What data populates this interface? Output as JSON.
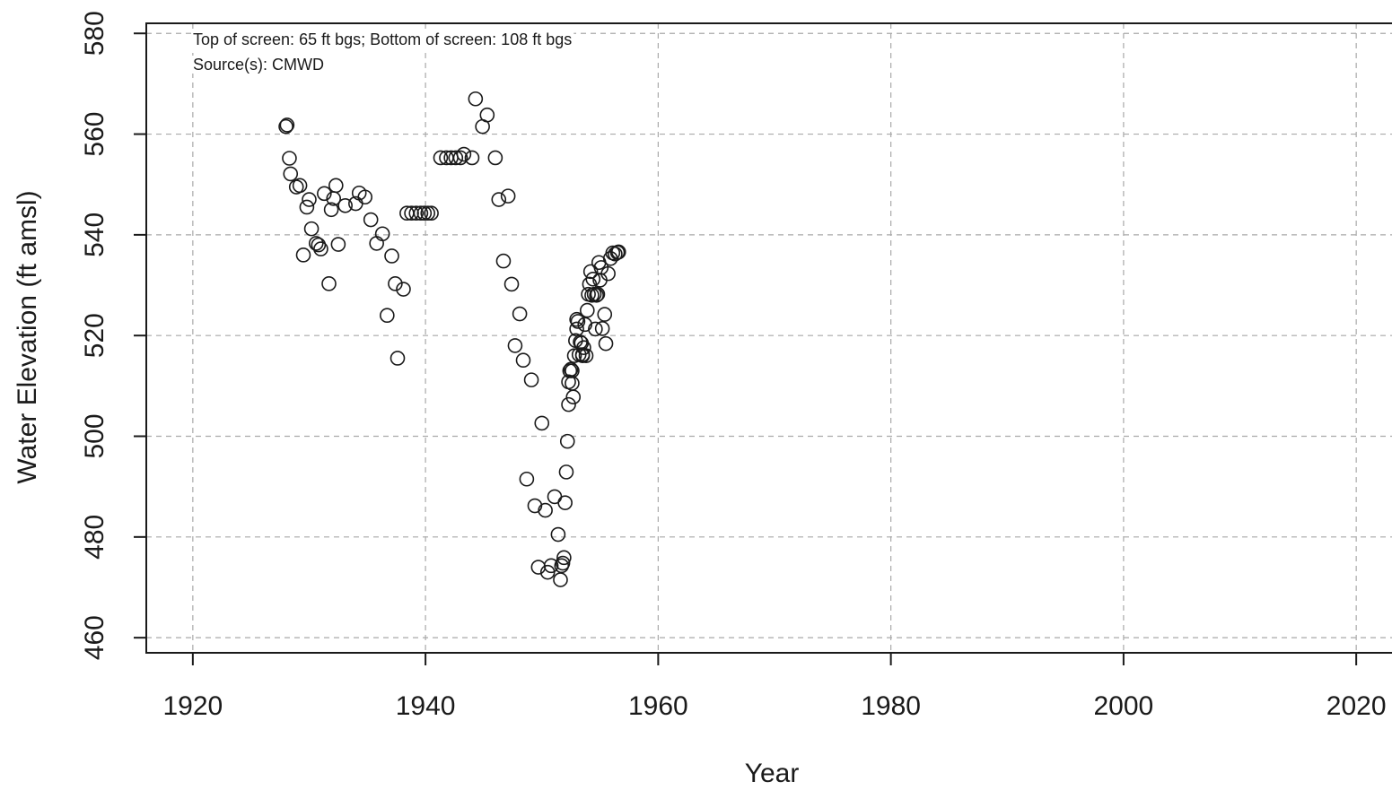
{
  "chart_data": {
    "type": "scatter",
    "title": "",
    "xlabel": "Year",
    "ylabel": "Water Elevation (ft amsl)",
    "xlim": [
      1916,
      2024
    ],
    "ylim": [
      457,
      582
    ],
    "xticks": [
      1920,
      1940,
      1960,
      1980,
      2000,
      2020
    ],
    "yticks": [
      460,
      480,
      500,
      520,
      540,
      560,
      580
    ],
    "grid": true,
    "annotations": [
      "Top of screen: 65 ft bgs; Bottom of screen: 108 ft bgs",
      "Source(s): CMWD"
    ],
    "x": [
      1928.0,
      1928.1,
      1928.3,
      1928.4,
      1928.9,
      1929.2,
      1929.5,
      1929.8,
      1930.0,
      1930.2,
      1930.6,
      1930.8,
      1931.0,
      1931.3,
      1931.7,
      1931.9,
      1932.1,
      1932.3,
      1932.5,
      1933.1,
      1934.0,
      1934.3,
      1934.8,
      1935.3,
      1935.8,
      1936.3,
      1936.7,
      1937.1,
      1937.4,
      1937.6,
      1938.1,
      1938.4,
      1938.8,
      1939.2,
      1939.6,
      1939.9,
      1940.2,
      1940.5,
      1941.3,
      1941.8,
      1942.2,
      1942.6,
      1943.0,
      1943.3,
      1944.0,
      1944.3,
      1944.9,
      1945.3,
      1946.0,
      1946.3,
      1946.7,
      1947.1,
      1947.4,
      1947.7,
      1948.1,
      1948.4,
      1948.7,
      1949.1,
      1949.4,
      1949.7,
      1950.0,
      1950.3,
      1950.5,
      1950.8,
      1951.1,
      1951.4,
      1951.6,
      1951.7,
      1951.8,
      1951.9,
      1952.0,
      1952.1,
      1952.2,
      1952.3,
      1952.3,
      1952.4,
      1952.5,
      1952.6,
      1952.6,
      1952.7,
      1952.8,
      1952.9,
      1953.0,
      1953.0,
      1953.1,
      1953.2,
      1953.3,
      1953.4,
      1953.5,
      1953.5,
      1953.6,
      1953.7,
      1953.8,
      1953.9,
      1954.0,
      1954.1,
      1954.2,
      1954.3,
      1954.4,
      1954.5,
      1954.6,
      1954.7,
      1954.8,
      1954.9,
      1955.0,
      1955.1,
      1955.2,
      1955.4,
      1955.5,
      1955.7,
      1955.9,
      1956.1,
      1956.3,
      1956.5,
      1956.6
    ],
    "y": [
      561.5,
      561.8,
      555.2,
      552.1,
      549.5,
      549.8,
      536.0,
      545.5,
      547.0,
      541.2,
      538.3,
      538.0,
      537.2,
      548.2,
      530.3,
      545.0,
      547.2,
      549.8,
      538.1,
      545.8,
      546.2,
      548.3,
      547.5,
      543.0,
      538.3,
      540.2,
      524.0,
      535.8,
      530.3,
      515.5,
      529.2,
      544.3,
      544.3,
      544.3,
      544.3,
      544.3,
      544.3,
      544.3,
      555.3,
      555.3,
      555.3,
      555.3,
      555.3,
      556.0,
      555.3,
      567.0,
      561.5,
      563.8,
      555.3,
      547.0,
      534.8,
      547.7,
      530.2,
      518.0,
      524.3,
      515.1,
      491.5,
      511.2,
      486.2,
      474.0,
      502.6,
      485.3,
      473.0,
      474.3,
      488.0,
      480.5,
      471.5,
      474.3,
      474.8,
      475.9,
      486.8,
      492.9,
      499.0,
      506.3,
      510.8,
      513.0,
      513.3,
      510.5,
      513.0,
      507.8,
      516.0,
      519.0,
      521.3,
      523.2,
      522.8,
      516.2,
      518.7,
      518.5,
      516.0,
      516.2,
      517.6,
      522.2,
      516.0,
      525.0,
      528.2,
      530.2,
      532.7,
      528.0,
      531.2,
      528.2,
      521.3,
      528.0,
      528.2,
      534.5,
      531.0,
      533.5,
      521.4,
      524.2,
      518.4,
      532.3,
      535.3,
      536.4,
      536.2,
      536.5,
      536.6
    ]
  }
}
